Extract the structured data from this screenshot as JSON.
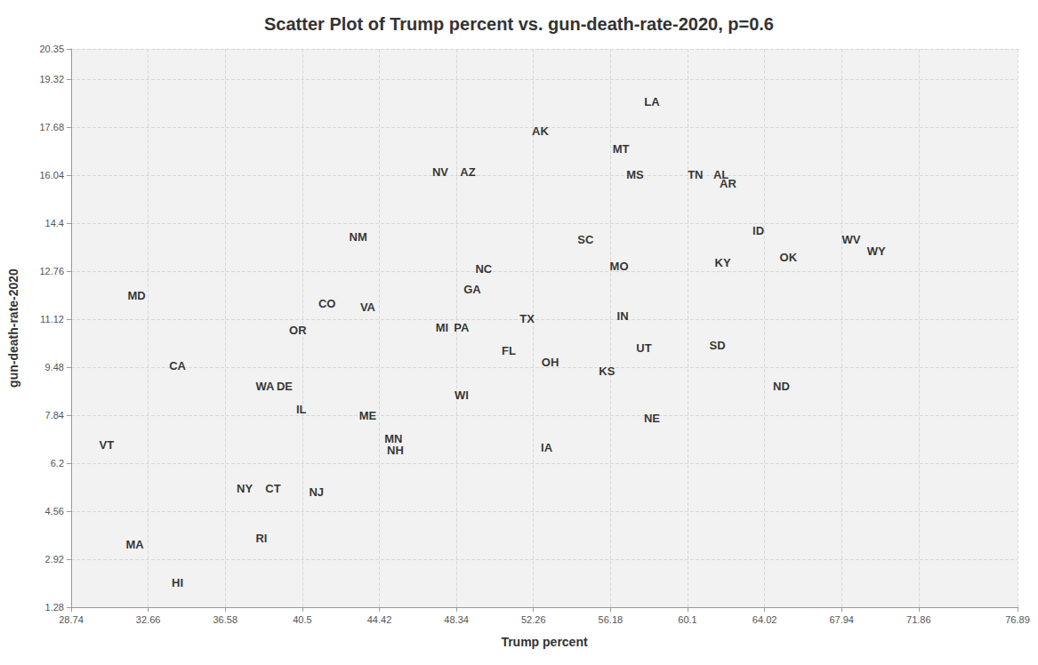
{
  "chart_data": {
    "type": "scatter",
    "title": "Scatter Plot of Trump percent vs. gun-death-rate-2020, p=0.6",
    "x_label": "Trump percent",
    "y_label": "gun-death-rate-2020",
    "marker": "none",
    "color": "#000000",
    "grid": true,
    "xlim": [
      28.74,
      76.89
    ],
    "xticks": [
      28.74,
      32.66,
      36.58,
      40.5,
      44.42,
      48.34,
      52.26,
      56.18,
      60.1,
      64.02,
      67.94,
      71.86,
      76.89
    ],
    "ylim": [
      1.28,
      20.35
    ],
    "yticks": [
      1.28,
      2.92,
      4.56,
      6.2,
      7.84,
      9.48,
      11.12,
      12.76,
      14.4,
      16.04,
      17.68,
      19.32,
      20.35
    ],
    "labels": [
      "LA",
      "AK",
      "MT",
      "MS",
      "TN",
      "AL",
      "AR",
      "NV",
      "AZ",
      "ID",
      "NM",
      "WV",
      "WY",
      "SC",
      "OK",
      "KY",
      "NC",
      "MO",
      "MD",
      "GA",
      "CO",
      "VA",
      "TX",
      "IN",
      "OR",
      "MI",
      "PA",
      "SD",
      "UT",
      "FL",
      "OH",
      "CA",
      "KS",
      "WA",
      "DE",
      "ND",
      "WI",
      "IL",
      "ME",
      "NE",
      "VT",
      "MN",
      "NH",
      "IA",
      "NY",
      "CT",
      "NJ",
      "RI",
      "MA",
      "HI"
    ],
    "x": [
      58.29,
      52.61,
      56.71,
      57.43,
      60.5,
      61.8,
      62.16,
      47.52,
      48.92,
      63.7,
      43.34,
      68.43,
      69.7,
      54.91,
      65.23,
      61.89,
      49.73,
      56.62,
      32.07,
      49.15,
      41.76,
      43.83,
      51.94,
      56.8,
      40.27,
      47.61,
      48.6,
      61.62,
      57.88,
      51.0,
      53.11,
      34.15,
      56.0,
      38.6,
      39.6,
      64.87,
      48.6,
      40.45,
      43.83,
      58.29,
      30.54,
      45.14,
      45.23,
      52.93,
      37.57,
      39.01,
      41.22,
      38.42,
      31.98,
      34.15
    ],
    "values": [
      18.54,
      17.54,
      16.93,
      16.05,
      16.05,
      16.05,
      15.75,
      16.14,
      16.14,
      14.14,
      13.93,
      13.83,
      13.44,
      13.83,
      13.23,
      13.04,
      12.83,
      12.92,
      11.92,
      12.13,
      11.64,
      11.52,
      11.13,
      11.22,
      10.73,
      10.82,
      10.82,
      10.22,
      10.12,
      10.03,
      9.64,
      9.52,
      9.33,
      8.82,
      8.82,
      8.82,
      8.51,
      8.03,
      7.82,
      7.72,
      6.81,
      7.02,
      6.63,
      6.72,
      5.32,
      5.32,
      5.2,
      3.62,
      3.41,
      2.1
    ]
  }
}
